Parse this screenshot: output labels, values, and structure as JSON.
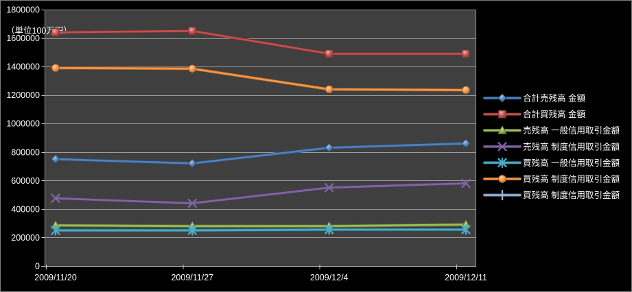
{
  "chart_data": {
    "type": "line",
    "title": "",
    "unit_label": "（単位100万円）",
    "categories": [
      "2009/11/20",
      "2009/11/27",
      "2009/12/4",
      "2009/12/11"
    ],
    "xlabel": "",
    "ylabel": "",
    "ylim": [
      0,
      1800000
    ],
    "ytick_interval": 200000,
    "yticks": [
      0,
      200000,
      400000,
      600000,
      800000,
      1000000,
      1200000,
      1400000,
      1600000,
      1800000
    ],
    "grid": true,
    "legend_position": "right",
    "colors": {
      "page_bg": "#000000",
      "plot_bg": "#3f3f3f",
      "gridline": "#9c9c9c",
      "axis": "#c8c8c8",
      "text": "#ffffff"
    },
    "series": [
      {
        "name": "合計売残高 金額",
        "color": "#4F81BD",
        "marker": "diamond",
        "values": [
          750000,
          720000,
          830000,
          860000
        ]
      },
      {
        "name": "合計買残高 金額",
        "color": "#C0504D",
        "marker": "square",
        "values": [
          1640000,
          1650000,
          1490000,
          1490000
        ]
      },
      {
        "name": "売残高 一般信用取引金額",
        "color": "#9BBB59",
        "marker": "triangle",
        "values": [
          285000,
          280000,
          280000,
          290000
        ]
      },
      {
        "name": "売残高 制度信用取引金額",
        "color": "#8064A2",
        "marker": "x",
        "values": [
          475000,
          440000,
          550000,
          580000
        ]
      },
      {
        "name": "買残高 一般信用取引金額",
        "color": "#4BACC6",
        "marker": "asterisk",
        "values": [
          250000,
          250000,
          255000,
          255000
        ]
      },
      {
        "name": "買残高 制度信用取引金額",
        "color": "#F79646",
        "marker": "circle",
        "values": [
          1390000,
          1385000,
          1240000,
          1235000
        ]
      },
      {
        "name": "買残高 制度信用取引金額",
        "color": "#95B3D7",
        "marker": "plus",
        "values": [
          null,
          null,
          null,
          null
        ],
        "legend_only": true
      }
    ]
  }
}
